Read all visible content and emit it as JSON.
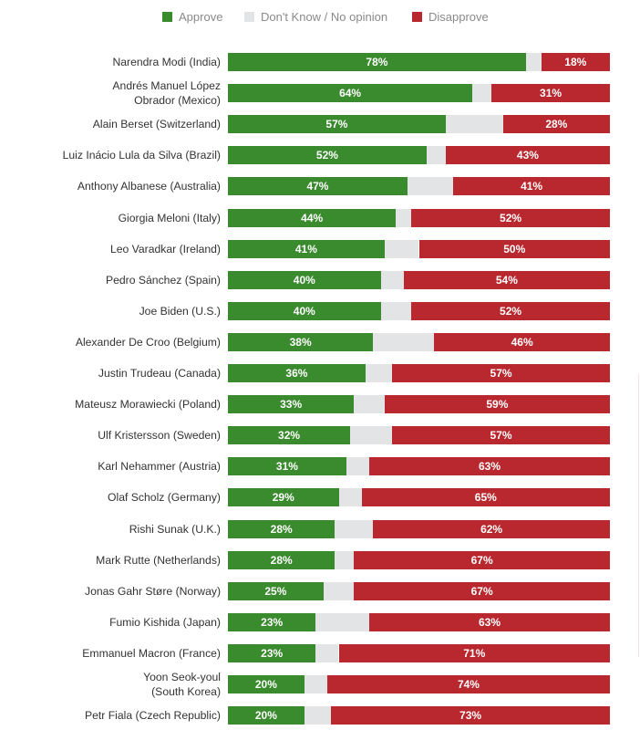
{
  "legend": {
    "approve": "Approve",
    "dont_know": "Don't Know / No opinion",
    "disapprove": "Disapprove"
  },
  "colors": {
    "approve": "#3a8a2e",
    "dont_know": "#e2e4e6",
    "disapprove": "#b8282e"
  },
  "chart_data": {
    "type": "bar",
    "orientation": "horizontal-stacked",
    "title": "",
    "xlabel": "",
    "ylabel": "",
    "xlim": [
      0,
      100
    ],
    "legend_position": "top",
    "categories": [
      "Narendra Modi (India)",
      "Andrés Manuel López Obrador (Mexico)",
      "Alain Berset (Switzerland)",
      "Luiz Inácio Lula da Silva (Brazil)",
      "Anthony Albanese (Australia)",
      "Giorgia Meloni (Italy)",
      "Leo Varadkar (Ireland)",
      "Pedro Sánchez (Spain)",
      "Joe Biden (U.S.)",
      "Alexander De Croo (Belgium)",
      "Justin Trudeau (Canada)",
      "Mateusz Morawiecki (Poland)",
      "Ulf Kristersson (Sweden)",
      "Karl Nehammer (Austria)",
      "Olaf Scholz (Germany)",
      "Rishi Sunak (U.K.)",
      "Mark Rutte (Netherlands)",
      "Jonas Gahr Støre (Norway)",
      "Fumio Kishida (Japan)",
      "Emmanuel Macron (France)",
      "Yoon Seok-youl (South Korea)",
      "Petr Fiala (Czech Republic)"
    ],
    "label_lines": [
      [
        "Narendra Modi (India)"
      ],
      [
        "Andrés Manuel López",
        "Obrador (Mexico)"
      ],
      [
        "Alain Berset (Switzerland)"
      ],
      [
        "Luiz Inácio Lula da Silva (Brazil)"
      ],
      [
        "Anthony Albanese (Australia)"
      ],
      [
        "Giorgia Meloni (Italy)"
      ],
      [
        "Leo Varadkar (Ireland)"
      ],
      [
        "Pedro Sánchez (Spain)"
      ],
      [
        "Joe Biden (U.S.)"
      ],
      [
        "Alexander De Croo (Belgium)"
      ],
      [
        "Justin Trudeau (Canada)"
      ],
      [
        "Mateusz Morawiecki (Poland)"
      ],
      [
        "Ulf Kristersson (Sweden)"
      ],
      [
        "Karl Nehammer (Austria)"
      ],
      [
        "Olaf Scholz (Germany)"
      ],
      [
        "Rishi Sunak (U.K.)"
      ],
      [
        "Mark Rutte (Netherlands)"
      ],
      [
        "Jonas Gahr Støre (Norway)"
      ],
      [
        "Fumio Kishida (Japan)"
      ],
      [
        "Emmanuel Macron (France)"
      ],
      [
        "Yoon Seok-youl",
        "(South Korea)"
      ],
      [
        "Petr Fiala (Czech Republic)"
      ]
    ],
    "series": [
      {
        "name": "Approve",
        "values": [
          78,
          64,
          57,
          52,
          47,
          44,
          41,
          40,
          40,
          38,
          36,
          33,
          32,
          31,
          29,
          28,
          28,
          25,
          23,
          23,
          20,
          20
        ]
      },
      {
        "name": "Don't Know / No opinion",
        "values": [
          4,
          5,
          15,
          5,
          12,
          4,
          9,
          6,
          8,
          16,
          7,
          8,
          11,
          6,
          6,
          10,
          5,
          8,
          14,
          6,
          6,
          7
        ]
      },
      {
        "name": "Disapprove",
        "values": [
          18,
          31,
          28,
          43,
          41,
          52,
          50,
          54,
          52,
          46,
          57,
          59,
          57,
          63,
          65,
          62,
          67,
          67,
          63,
          71,
          74,
          73
        ]
      }
    ],
    "value_labels": {
      "approve": [
        "78%",
        "64%",
        "57%",
        "52%",
        "47%",
        "44%",
        "41%",
        "40%",
        "40%",
        "38%",
        "36%",
        "33%",
        "32%",
        "31%",
        "29%",
        "28%",
        "28%",
        "25%",
        "23%",
        "23%",
        "20%",
        "20%"
      ],
      "disapprove": [
        "18%",
        "31%",
        "28%",
        "43%",
        "41%",
        "52%",
        "50%",
        "54%",
        "52%",
        "46%",
        "57%",
        "59%",
        "57%",
        "63%",
        "65%",
        "62%",
        "67%",
        "67%",
        "63%",
        "71%",
        "74%",
        "73%"
      ]
    }
  }
}
